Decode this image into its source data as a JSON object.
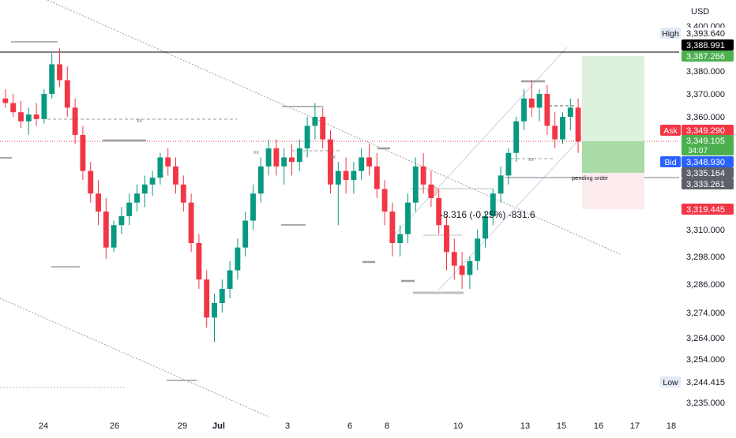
{
  "currency": "USD",
  "chart_data": {
    "type": "candlestick",
    "title": "",
    "y_ticks": [
      3400.0,
      3380.0,
      3370.0,
      3360.0,
      3310.0,
      3298.0,
      3286.0,
      3274.0,
      3264.0,
      3254.0,
      3235.0
    ],
    "x_ticks": [
      "24",
      "26",
      "29",
      "Jul",
      "3",
      "6",
      "8",
      "10",
      "13",
      "15",
      "16",
      "17",
      "18"
    ],
    "price_labels": [
      {
        "prefix": "High",
        "value": "3,393.640",
        "style": "plain"
      },
      {
        "prefix": "",
        "value": "3,388.991",
        "style": "black"
      },
      {
        "prefix": "",
        "value": "3,387.266",
        "style": "green"
      },
      {
        "prefix": "Ask",
        "value": "3,349.290",
        "style": "red"
      },
      {
        "prefix": "",
        "value": "3,349.105",
        "style": "green",
        "sub": "34:07"
      },
      {
        "prefix": "Bid",
        "value": "3,348.930",
        "style": "blue"
      },
      {
        "prefix": "",
        "value": "3,335.164",
        "style": "gray"
      },
      {
        "prefix": "",
        "value": "3,333.261",
        "style": "gray"
      },
      {
        "prefix": "",
        "value": "3,319.445",
        "style": "red"
      },
      {
        "prefix": "Low",
        "value": "3,244.415",
        "style": "plain"
      }
    ],
    "annotations": {
      "measure_text": "-8.316 (-0.25%) -831.6",
      "pending_order": "pending order",
      "xx_marks": [
        "xx",
        "xx",
        "xx",
        "xx"
      ]
    },
    "series": [
      {
        "name": "",
        "values": [
          [
            3368,
            3372,
            3364,
            3366
          ],
          [
            3366,
            3370,
            3360,
            3362
          ],
          [
            3362,
            3367,
            3355,
            3358
          ],
          [
            3358,
            3364,
            3352,
            3361
          ],
          [
            3361,
            3366,
            3356,
            3359
          ],
          [
            3359,
            3372,
            3357,
            3370
          ],
          [
            3370,
            3388,
            3368,
            3383
          ],
          [
            3383,
            3390,
            3373,
            3376
          ],
          [
            3376,
            3382,
            3360,
            3364
          ],
          [
            3364,
            3368,
            3348,
            3352
          ],
          [
            3352,
            3356,
            3332,
            3336
          ],
          [
            3336,
            3340,
            3322,
            3326
          ],
          [
            3326,
            3332,
            3312,
            3318
          ],
          [
            3318,
            3324,
            3297,
            3302
          ],
          [
            3302,
            3314,
            3300,
            3312
          ],
          [
            3312,
            3320,
            3308,
            3316
          ],
          [
            3316,
            3326,
            3312,
            3322
          ],
          [
            3322,
            3330,
            3318,
            3326
          ],
          [
            3326,
            3334,
            3320,
            3330
          ],
          [
            3330,
            3336,
            3325,
            3333
          ],
          [
            3333,
            3344,
            3330,
            3342
          ],
          [
            3342,
            3346,
            3334,
            3338
          ],
          [
            3338,
            3342,
            3326,
            3330
          ],
          [
            3330,
            3334,
            3318,
            3322
          ],
          [
            3322,
            3326,
            3300,
            3304
          ],
          [
            3304,
            3308,
            3284,
            3288
          ],
          [
            3288,
            3292,
            3268,
            3272
          ],
          [
            3272,
            3282,
            3262,
            3278
          ],
          [
            3278,
            3288,
            3274,
            3284
          ],
          [
            3284,
            3296,
            3280,
            3292
          ],
          [
            3292,
            3306,
            3288,
            3302
          ],
          [
            3302,
            3318,
            3298,
            3314
          ],
          [
            3314,
            3330,
            3310,
            3326
          ],
          [
            3326,
            3342,
            3322,
            3338
          ],
          [
            3338,
            3350,
            3334,
            3346
          ],
          [
            3346,
            3350,
            3334,
            3338
          ],
          [
            3338,
            3346,
            3330,
            3342
          ],
          [
            3342,
            3348,
            3334,
            3340
          ],
          [
            3340,
            3350,
            3336,
            3346
          ],
          [
            3346,
            3360,
            3342,
            3356
          ],
          [
            3356,
            3366,
            3350,
            3360
          ],
          [
            3360,
            3364,
            3346,
            3350
          ],
          [
            3350,
            3354,
            3326,
            3330
          ],
          [
            3330,
            3340,
            3312,
            3336
          ],
          [
            3336,
            3342,
            3326,
            3332
          ],
          [
            3332,
            3340,
            3326,
            3336
          ],
          [
            3336,
            3346,
            3332,
            3342
          ],
          [
            3342,
            3348,
            3334,
            3338
          ],
          [
            3338,
            3344,
            3324,
            3328
          ],
          [
            3328,
            3332,
            3312,
            3318
          ],
          [
            3318,
            3322,
            3298,
            3304
          ],
          [
            3304,
            3312,
            3298,
            3308
          ],
          [
            3308,
            3326,
            3304,
            3322
          ],
          [
            3322,
            3342,
            3318,
            3338
          ],
          [
            3338,
            3344,
            3326,
            3330
          ],
          [
            3330,
            3336,
            3320,
            3324
          ],
          [
            3324,
            3328,
            3308,
            3312
          ],
          [
            3312,
            3316,
            3292,
            3300
          ],
          [
            3300,
            3306,
            3288,
            3294
          ],
          [
            3294,
            3300,
            3284,
            3290
          ],
          [
            3290,
            3298,
            3284,
            3296
          ],
          [
            3296,
            3310,
            3292,
            3306
          ],
          [
            3306,
            3318,
            3302,
            3316
          ],
          [
            3316,
            3328,
            3312,
            3326
          ],
          [
            3326,
            3338,
            3322,
            3334
          ],
          [
            3334,
            3346,
            3330,
            3344
          ],
          [
            3344,
            3360,
            3340,
            3358
          ],
          [
            3358,
            3372,
            3354,
            3368
          ],
          [
            3368,
            3376,
            3360,
            3364
          ],
          [
            3364,
            3372,
            3358,
            3370
          ],
          [
            3370,
            3374,
            3352,
            3356
          ],
          [
            3356,
            3362,
            3346,
            3350
          ],
          [
            3350,
            3362,
            3348,
            3360
          ],
          [
            3360,
            3368,
            3354,
            3364
          ],
          [
            3364,
            3368,
            3344,
            3349
          ]
        ]
      }
    ],
    "y_range": [
      3230,
      3405
    ]
  }
}
